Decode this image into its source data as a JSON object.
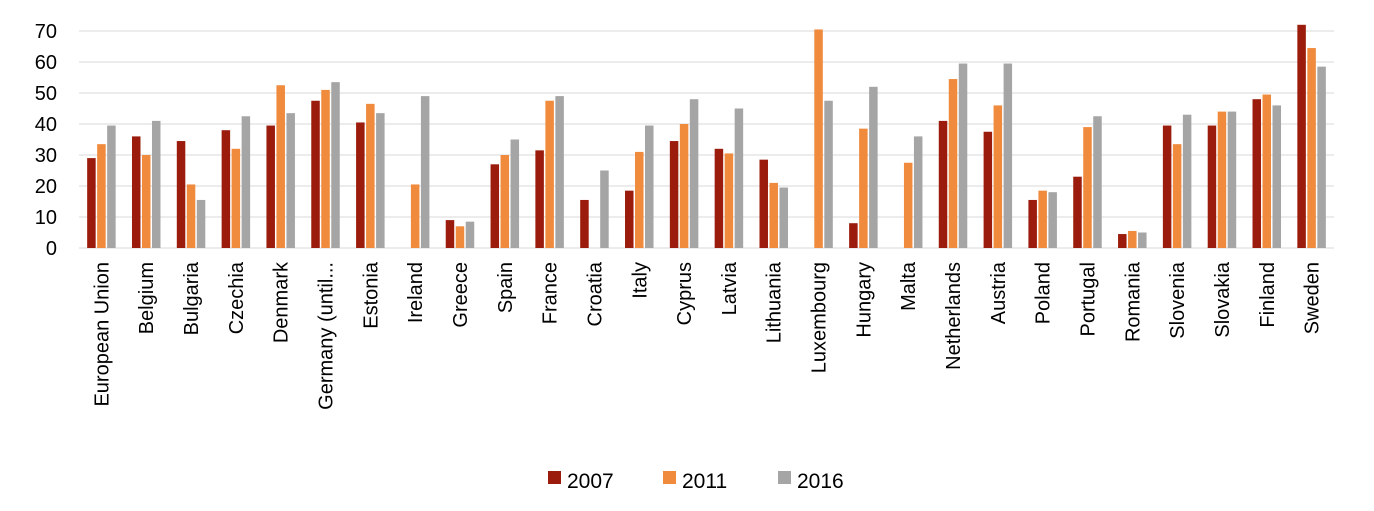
{
  "chart_data": {
    "type": "bar",
    "categories": [
      "European Union",
      "Belgium",
      "Bulgaria",
      "Czechia",
      "Denmark",
      "Germany (until...",
      "Estonia",
      "Ireland",
      "Greece",
      "Spain",
      "France",
      "Croatia",
      "Italy",
      "Cyprus",
      "Latvia",
      "Lithuania",
      "Luxembourg",
      "Hungary",
      "Malta",
      "Netherlands",
      "Austria",
      "Poland",
      "Portugal",
      "Romania",
      "Slovenia",
      "Slovakia",
      "Finland",
      "Sweden"
    ],
    "series": [
      {
        "name": "2007",
        "color": "#9b1c0c",
        "values": [
          29,
          36,
          34.5,
          38,
          39.5,
          47.5,
          40.5,
          null,
          9,
          27,
          31.5,
          15.5,
          18.5,
          34.5,
          32,
          28.5,
          null,
          8,
          null,
          41,
          37.5,
          15.5,
          23,
          4.5,
          39.5,
          39.5,
          48,
          72
        ]
      },
      {
        "name": "2011",
        "color": "#f08a3c",
        "values": [
          33.5,
          30,
          20.5,
          32,
          52.5,
          51,
          46.5,
          20.5,
          7,
          30,
          47.5,
          null,
          31,
          40,
          30.5,
          21,
          70.5,
          38.5,
          27.5,
          54.5,
          46,
          18.5,
          39,
          5.5,
          33.5,
          44,
          49.5,
          64.5
        ]
      },
      {
        "name": "2016",
        "color": "#a5a5a5",
        "values": [
          39.5,
          41,
          15.5,
          42.5,
          43.5,
          53.5,
          43.5,
          49,
          8.5,
          35,
          49,
          25,
          39.5,
          48,
          45,
          19.5,
          47.5,
          52,
          36,
          59.5,
          59.5,
          18,
          42.5,
          5,
          43,
          44,
          46,
          58.5
        ]
      }
    ],
    "ylim": [
      0,
      70
    ],
    "yticks": [
      "0",
      "10",
      "20",
      "30",
      "40",
      "50",
      "60",
      "70"
    ],
    "grid": true,
    "legend": "bottom"
  }
}
